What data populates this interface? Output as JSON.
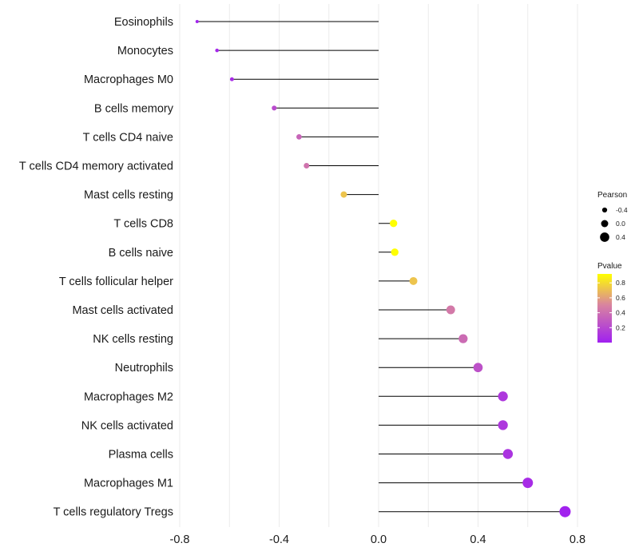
{
  "chart_data": {
    "type": "lollipop",
    "title": "",
    "xlabel": "",
    "ylabel": "",
    "xlim": [
      -0.8,
      0.8
    ],
    "xticks": [
      -0.8,
      -0.4,
      0.0,
      0.4,
      0.8
    ],
    "xtick_labels": [
      "-0.8",
      "-0.4",
      "0.0",
      "0.4",
      "0.8"
    ],
    "grid": true,
    "categories": [
      "Eosinophils",
      "Monocytes",
      "Macrophages M0",
      "B cells memory",
      "T cells CD4 naive",
      "T cells CD4 memory activated",
      "Mast cells resting",
      "T cells CD8",
      "B cells naive",
      "T cells follicular helper",
      "Mast cells activated",
      "NK cells resting",
      "Neutrophils",
      "Macrophages M2",
      "NK cells activated",
      "Plasma cells",
      "Macrophages M1",
      "T cells regulatory  Tregs"
    ],
    "pearson": [
      -0.73,
      -0.65,
      -0.59,
      -0.42,
      -0.32,
      -0.29,
      -0.14,
      0.06,
      0.065,
      0.14,
      0.29,
      0.34,
      0.4,
      0.5,
      0.5,
      0.52,
      0.6,
      0.75
    ],
    "pvalue": [
      0.02,
      0.04,
      0.06,
      0.22,
      0.35,
      0.42,
      0.72,
      0.92,
      0.93,
      0.72,
      0.45,
      0.38,
      0.25,
      0.12,
      0.12,
      0.1,
      0.06,
      0.01
    ],
    "legend": {
      "size": {
        "title": "Pearson",
        "entries": [
          {
            "label": "-0.4",
            "value": -0.4
          },
          {
            "label": "0.0",
            "value": 0.0
          },
          {
            "label": "0.4",
            "value": 0.4
          }
        ]
      },
      "color": {
        "title": "Pvalue",
        "ticks": [
          {
            "label": "0.8",
            "value": 0.8
          },
          {
            "label": "0.6",
            "value": 0.6
          },
          {
            "label": "0.4",
            "value": 0.4
          },
          {
            "label": "0.2",
            "value": 0.2
          }
        ],
        "range": [
          0.0,
          0.92
        ],
        "low_color": "#a020f0",
        "mid_color": "#d9849f",
        "high_color": "#ffff00"
      }
    },
    "colors": {
      "stem": "#000000",
      "grid": "#ebebeb"
    }
  }
}
